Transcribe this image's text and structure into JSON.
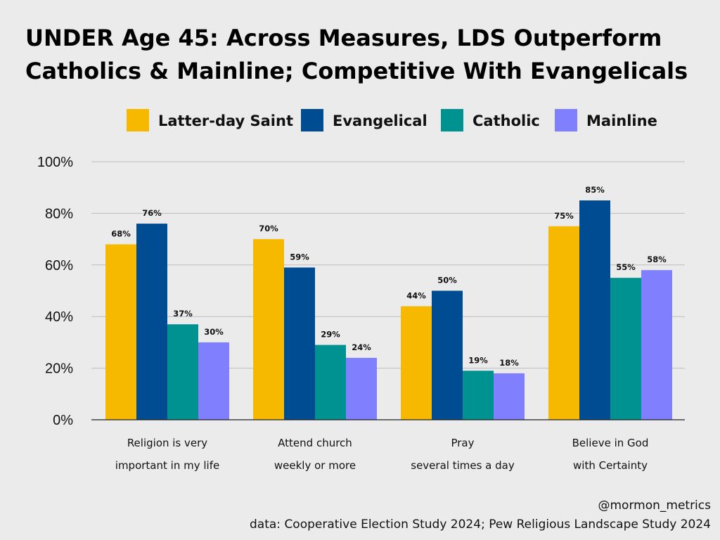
{
  "chart_data": {
    "type": "bar",
    "title": [
      "UNDER Age 45: Across Measures, LDS Outperform",
      "Catholics & Mainline; Competitive With Evangelicals"
    ],
    "categories": [
      [
        "Religion is very",
        "important in my life"
      ],
      [
        "Attend church",
        "weekly or more"
      ],
      [
        "Pray",
        "several times a day"
      ],
      [
        "Believe in God",
        "with Certainty"
      ]
    ],
    "series": [
      {
        "name": "Latter-day Saint",
        "color": "#f7b900",
        "values": [
          68,
          70,
          44,
          75
        ]
      },
      {
        "name": "Evangelical",
        "color": "#004c92",
        "values": [
          76,
          59,
          50,
          85
        ]
      },
      {
        "name": "Catholic",
        "color": "#009191",
        "values": [
          37,
          29,
          19,
          55
        ]
      },
      {
        "name": "Mainline",
        "color": "#8080ff",
        "values": [
          30,
          24,
          18,
          58
        ]
      }
    ],
    "ylim": [
      0,
      100
    ],
    "yticks": [
      0,
      20,
      40,
      60,
      80,
      100
    ],
    "value_suffix": "%",
    "grid": true,
    "legend": "top",
    "xlabel": "",
    "ylabel": ""
  },
  "credits": {
    "handle": "@mormon_metrics",
    "source": "data: Cooperative Election Study 2024; Pew Religious Landscape Study 2024"
  }
}
